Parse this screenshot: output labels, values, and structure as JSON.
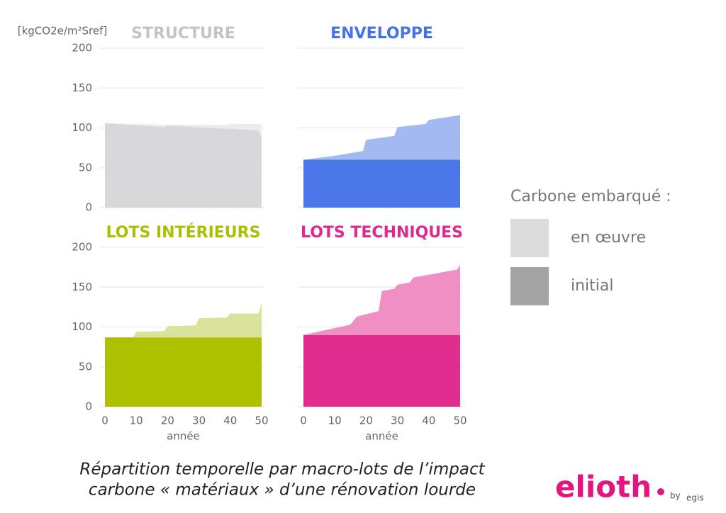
{
  "chart_data": [
    {
      "type": "area",
      "title": "STRUCTURE",
      "title_color": "#c4c4c6",
      "ylabel": "[kgCO2e/m²Sref]",
      "x": [
        0,
        19,
        20,
        39,
        40,
        49,
        50
      ],
      "xlim": [
        0,
        50
      ],
      "ylim": [
        0,
        200
      ],
      "yticks": [
        0,
        50,
        100,
        150,
        200
      ],
      "series": [
        {
          "name": "initial",
          "color": "#d8d8db",
          "values": [
            106,
            101,
            103,
            99,
            99,
            97,
            88
          ]
        },
        {
          "name": "en œuvre",
          "color": "#ececee",
          "values": [
            0,
            3,
            1,
            5,
            6,
            8,
            17
          ]
        }
      ]
    },
    {
      "type": "area",
      "title": "ENVELOPPE",
      "title_color": "#4673e6",
      "x": [
        0,
        10,
        19,
        20,
        29,
        30,
        39,
        40,
        50
      ],
      "xlim": [
        0,
        50
      ],
      "ylim": [
        0,
        200
      ],
      "yticks": [
        0,
        50,
        100,
        150,
        200
      ],
      "series": [
        {
          "name": "initial",
          "color": "#4a78e8",
          "values": [
            60,
            60,
            60,
            60,
            60,
            60,
            60,
            60,
            60
          ]
        },
        {
          "name": "en œuvre",
          "color": "#a2b9f2",
          "values": [
            0,
            5,
            11,
            25,
            30,
            41,
            45,
            50,
            56
          ]
        }
      ]
    },
    {
      "type": "area",
      "title": "LOTS INTÉRIEURS",
      "title_color": "#a9c000",
      "x": [
        0,
        9,
        10,
        19,
        20,
        29,
        30,
        39,
        40,
        49,
        50
      ],
      "xlim": [
        0,
        50
      ],
      "ylim": [
        0,
        200
      ],
      "yticks": [
        0,
        50,
        100,
        150,
        200
      ],
      "xticks": [
        0,
        10,
        20,
        30,
        40,
        50
      ],
      "xlabel": "année",
      "series": [
        {
          "name": "initial",
          "color": "#adc100",
          "values": [
            87,
            87,
            87,
            87,
            87,
            87,
            87,
            87,
            87,
            87,
            87
          ]
        },
        {
          "name": "en œuvre",
          "color": "#d9e39b",
          "values": [
            0,
            0,
            7,
            8,
            14,
            15,
            24,
            25,
            30,
            30,
            43
          ]
        }
      ]
    },
    {
      "type": "area",
      "title": "LOTS TECHNIQUES",
      "title_color": "#e0288f",
      "x": [
        0,
        15,
        17,
        24,
        25,
        29,
        30,
        34,
        35,
        49,
        50
      ],
      "xlim": [
        0,
        50
      ],
      "ylim": [
        0,
        200
      ],
      "yticks": [
        0,
        50,
        100,
        150,
        200
      ],
      "xticks": [
        0,
        10,
        20,
        30,
        40,
        50
      ],
      "xlabel": "année",
      "series": [
        {
          "name": "initial",
          "color": "#e02d8f",
          "values": [
            90,
            90,
            90,
            90,
            90,
            90,
            90,
            90,
            90,
            90,
            90
          ]
        },
        {
          "name": "en œuvre",
          "color": "#ef8fc4",
          "values": [
            0,
            13,
            23,
            30,
            55,
            58,
            63,
            66,
            72,
            82,
            88
          ]
        }
      ]
    }
  ],
  "legend": {
    "title": "Carbone embarqué :",
    "items": [
      {
        "name": "en œuvre",
        "color": "#dcdcdd"
      },
      {
        "name": "initial",
        "color": "#a3a3a3"
      }
    ]
  },
  "caption": [
    "Répartition temporelle par macro-lots de l’impact",
    "carbone « matériaux » d’une rénovation lourde"
  ],
  "logo": {
    "name": "elioth",
    "by": "by",
    "brand": "egis"
  }
}
